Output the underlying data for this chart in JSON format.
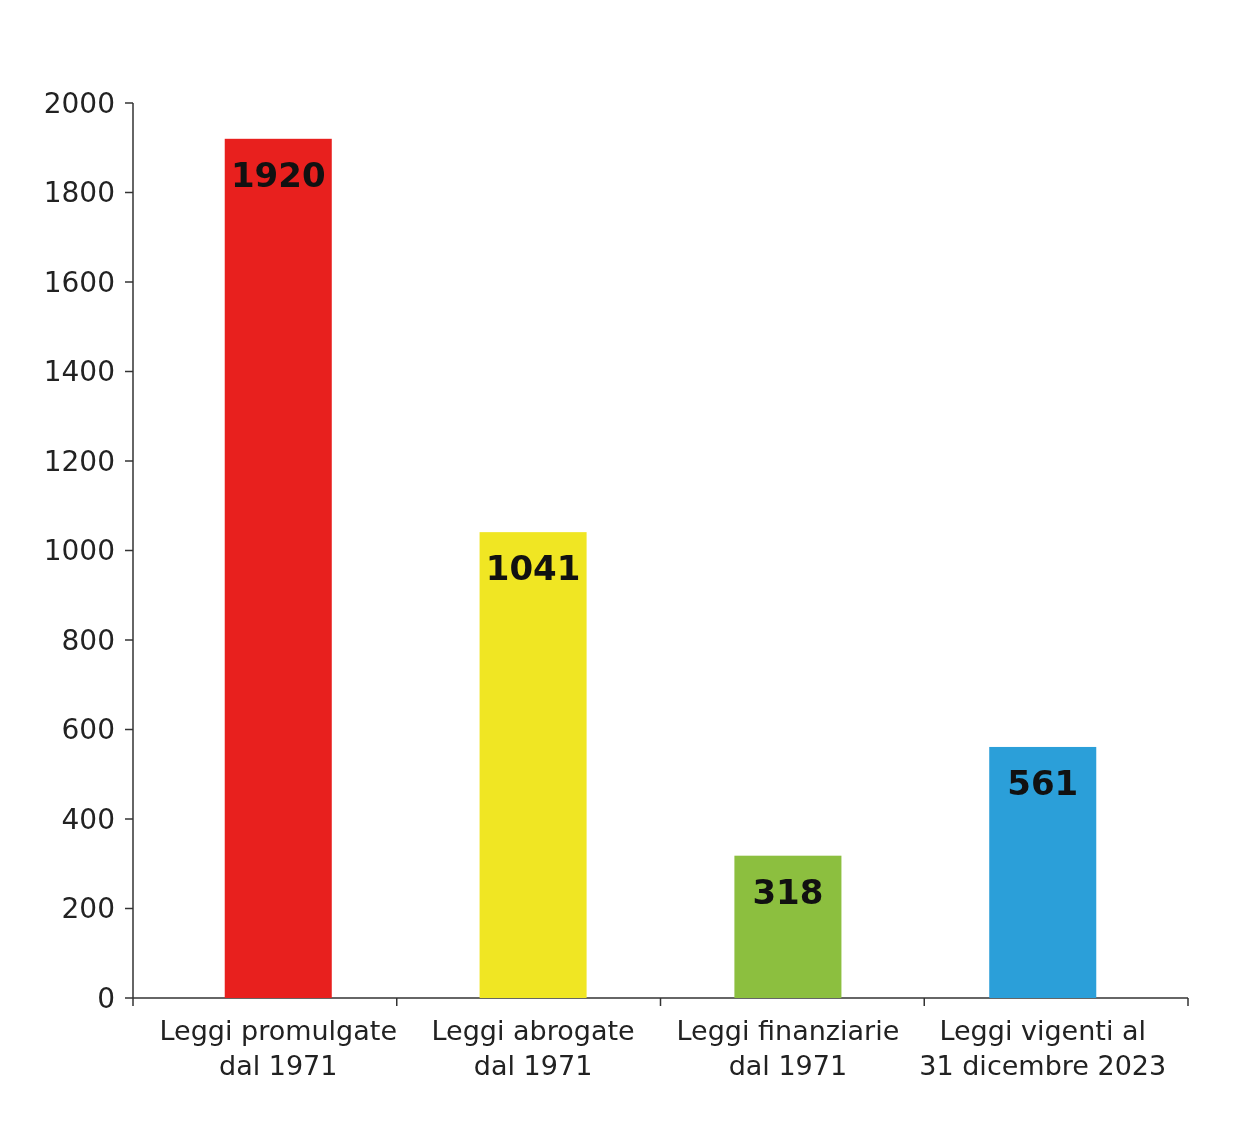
{
  "chart_data": {
    "type": "bar",
    "categories": [
      "Leggi promulgate dal 1971",
      "Leggi abrogate dal 1971",
      "Leggi finanziarie dal 1971",
      "Leggi vigenti al 31 dicembre 2023"
    ],
    "values": [
      1920,
      1041,
      318,
      561
    ],
    "colors": [
      "#e8201e",
      "#f0e623",
      "#8cbf3f",
      "#2b9fd9"
    ],
    "ylim": [
      0,
      2000
    ],
    "yticks": [
      0,
      200,
      400,
      600,
      800,
      1000,
      1200,
      1400,
      1600,
      1800,
      2000
    ],
    "data_labels": true
  }
}
